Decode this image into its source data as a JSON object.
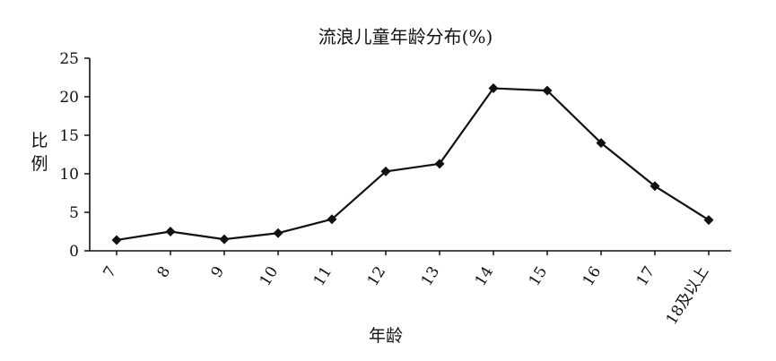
{
  "chart_data": {
    "type": "line",
    "title": "流浪儿童年龄分布(%)",
    "xlabel": "年龄",
    "ylabel": "比例",
    "categories": [
      "7",
      "8",
      "9",
      "10",
      "11",
      "12",
      "13",
      "14",
      "15",
      "16",
      "17",
      "18及以上"
    ],
    "series": [
      {
        "values": [
          1.4,
          2.5,
          1.5,
          2.3,
          4.1,
          10.3,
          11.3,
          21.1,
          20.8,
          14.0,
          8.4,
          4.0
        ]
      }
    ],
    "yticks": [
      0,
      5,
      10,
      15,
      20,
      25
    ],
    "ylim": [
      0,
      25
    ],
    "grid": false,
    "marker": "diamond",
    "line_color": "#111111",
    "marker_color": "#111111"
  }
}
